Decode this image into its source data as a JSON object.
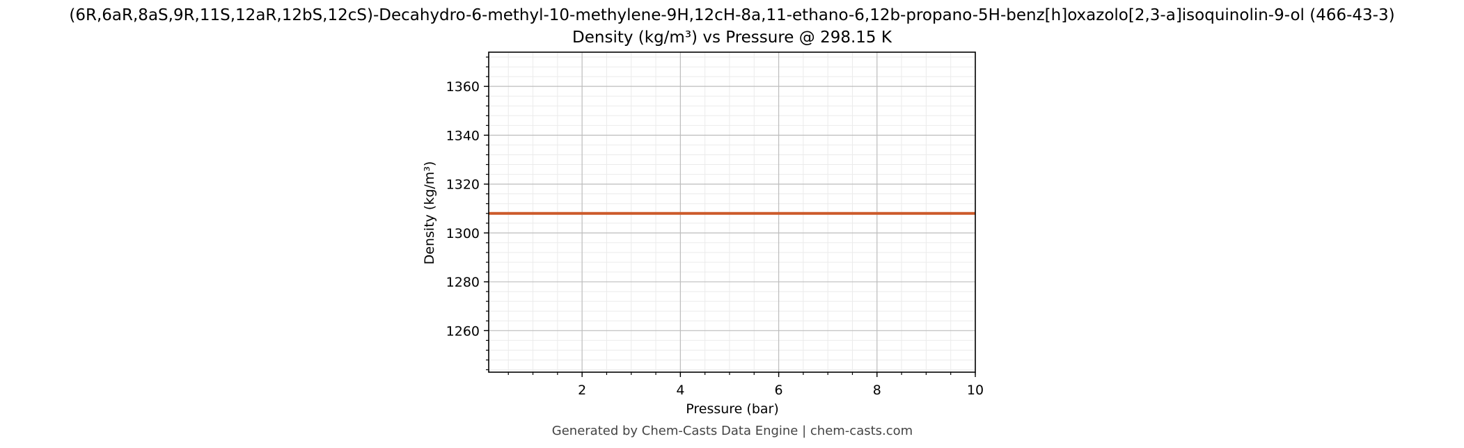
{
  "chart_data": {
    "type": "line",
    "title_line1": "(6R,6aR,8aS,9R,11S,12aR,12bS,12cS)-Decahydro-6-methyl-10-methylene-9H,12cH-8a,11-ethano-6,12b-propano-5H-benz[h]oxazolo[2,3-a]isoquinolin-9-ol (466-43-3)",
    "title_line2": "Density (kg/m³) vs Pressure @ 298.15 K",
    "xlabel": "Pressure (bar)",
    "ylabel": "Density (kg/m³)",
    "xlim": [
      0.1,
      10
    ],
    "ylim": [
      1243,
      1374
    ],
    "x_ticks": [
      2,
      4,
      6,
      8,
      10
    ],
    "y_ticks": [
      1260,
      1280,
      1300,
      1320,
      1340,
      1360
    ],
    "x_minor_step": 0.5,
    "y_minor_step": 4,
    "grid": true,
    "series": [
      {
        "color": "#cc5a2a",
        "x": [
          0.1,
          10
        ],
        "y": [
          1308,
          1308
        ]
      }
    ]
  },
  "footer": "Generated by Chem-Casts Data Engine | chem-casts.com"
}
